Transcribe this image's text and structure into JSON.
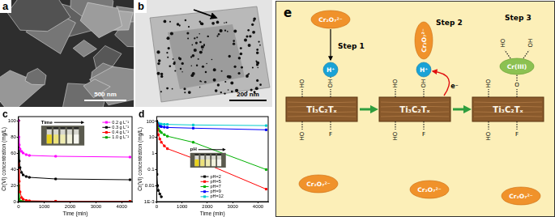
{
  "images": [
    {
      "panel_label": "a",
      "scale_bar": "500 nm"
    },
    {
      "panel_label": "b",
      "scale_bar": "200 nm"
    }
  ],
  "chart_data": [
    {
      "type": "line",
      "title": "c",
      "x_label": "Time (min)",
      "y_label": "Cr(VI) concentration (mg/L)",
      "annotation": "Time",
      "x": [
        0,
        10,
        30,
        60,
        120,
        180,
        300,
        420,
        1440,
        4320
      ],
      "series": [
        {
          "name": "0.2 g L⁻¹",
          "color": "#ff00ff",
          "values": [
            100,
            80,
            70,
            65,
            62,
            60,
            58,
            57,
            56,
            55
          ]
        },
        {
          "name": "0.3 g L⁻¹",
          "color": "#000000",
          "values": [
            100,
            65,
            50,
            42,
            36,
            33,
            31,
            30,
            28,
            27
          ]
        },
        {
          "name": "0.4 g L⁻¹",
          "color": "#ff0000",
          "values": [
            100,
            50,
            25,
            12,
            5,
            3,
            1.5,
            1,
            0.5,
            0.3
          ]
        },
        {
          "name": "1.0 g L⁻¹",
          "color": "#00a000",
          "values": [
            100,
            20,
            3,
            0.5,
            0.2,
            0.1,
            0.1,
            0.1,
            0.1,
            0.1
          ]
        }
      ],
      "xlim": [
        0,
        4400
      ],
      "xticks": [
        0,
        1000,
        2000,
        3000,
        4000
      ],
      "ylim": [
        0,
        105
      ],
      "yticks": [
        0,
        20,
        40,
        60,
        80,
        100
      ],
      "grid": false,
      "legend": "top-right",
      "marker": "square"
    },
    {
      "type": "line",
      "title": "d",
      "x_label": "Time (min)",
      "y_label": "Cr(VI) concentration (mg/L)",
      "annotation": "pH",
      "x": [
        0,
        10,
        30,
        60,
        120,
        180,
        300,
        420,
        1440,
        4320
      ],
      "series": [
        {
          "name": "pH=2",
          "color": "#000000",
          "values": [
            100,
            0.05,
            0.01,
            0.005,
            0.003,
            0.002,
            null,
            null,
            null,
            null
          ]
        },
        {
          "name": "pH=5",
          "color": "#ff0000",
          "values": [
            100,
            60,
            30,
            15,
            8,
            5,
            3,
            2,
            0.5,
            0.006
          ]
        },
        {
          "name": "pH=7",
          "color": "#00b000",
          "values": [
            100,
            70,
            50,
            35,
            25,
            20,
            15,
            12,
            5,
            0.1
          ]
        },
        {
          "name": "pH=9",
          "color": "#0000ff",
          "values": [
            100,
            80,
            65,
            55,
            50,
            47,
            44,
            42,
            38,
            30
          ]
        },
        {
          "name": "pH=12",
          "color": "#00cccc",
          "values": [
            100,
            90,
            80,
            75,
            70,
            68,
            66,
            65,
            60,
            55
          ]
        }
      ],
      "xlim": [
        0,
        4400
      ],
      "xticks": [
        0,
        1000,
        2000,
        3000,
        4000
      ],
      "ylim": [
        0.001,
        200
      ],
      "yticks": [
        {
          "value": 0.001,
          "label": "1E-3"
        },
        0.01,
        0.1,
        1,
        10,
        100
      ],
      "log": "y",
      "grid": false,
      "legend": "bottom",
      "marker": "square"
    }
  ],
  "diagram": {
    "label": "e",
    "material": "Ti₃C₂Tₓ",
    "steps": [
      "Step 1",
      "Step 2",
      "Step 3"
    ],
    "dichromate": "Cr₂O₇²⁻",
    "proton": "H⁺",
    "electron": "e⁻",
    "reduced": "Cr(III)",
    "groups": {
      "hydroxyl_left": "HO",
      "hydroxyl_right": "OH",
      "fluorine": "F",
      "oxygen": "O"
    }
  }
}
